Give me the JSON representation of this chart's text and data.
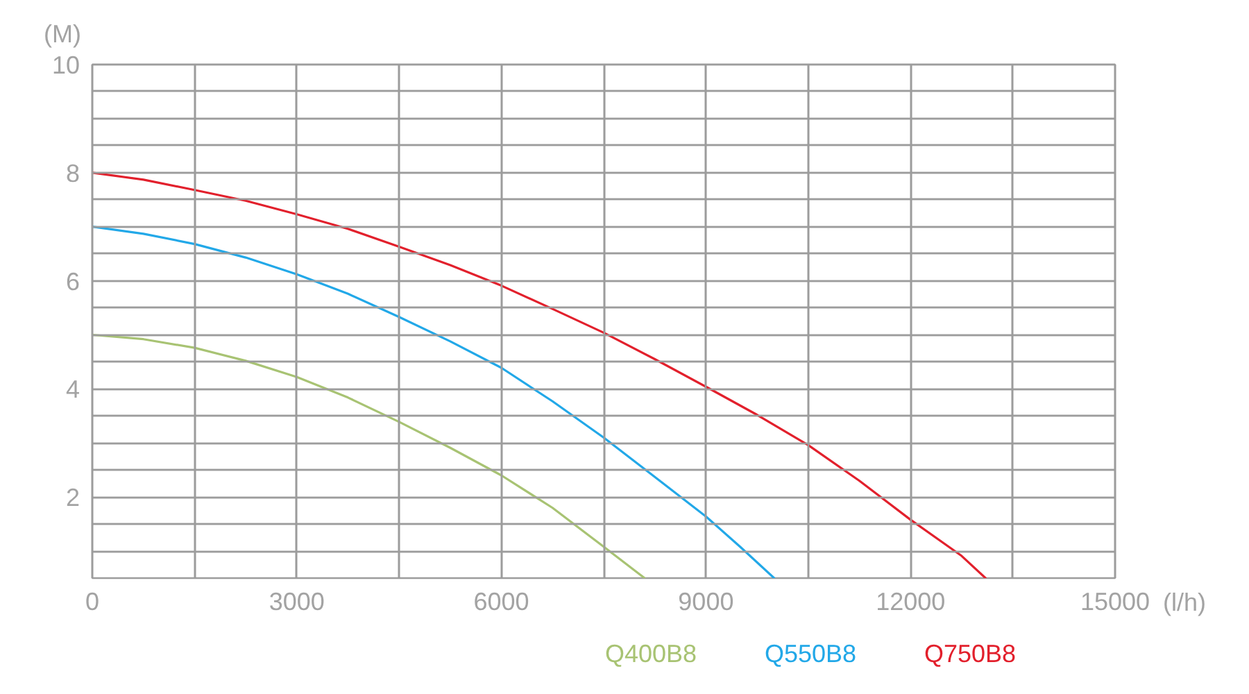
{
  "chart_data": {
    "type": "line",
    "xlabel": "(l/h)",
    "ylabel": "(M)",
    "xlim": [
      0,
      15000
    ],
    "ylim": [
      0.5,
      10
    ],
    "xticks": [
      0,
      {
        "value": 1500,
        "label": null
      },
      3000,
      {
        "value": 4500,
        "label": null
      },
      6000,
      {
        "value": 7500,
        "label": null
      },
      9000,
      {
        "value": 10500,
        "label": null
      },
      12000,
      {
        "value": 13500,
        "label": null
      },
      15000
    ],
    "yticks": [
      {
        "value": 1,
        "label": null
      },
      {
        "value": 1.5,
        "label": null
      },
      2,
      {
        "value": 2.5,
        "label": null
      },
      {
        "value": 3,
        "label": null
      },
      {
        "value": 3.5,
        "label": null
      },
      4,
      {
        "value": 4.5,
        "label": null
      },
      {
        "value": 5,
        "label": null
      },
      {
        "value": 5.5,
        "label": null
      },
      6,
      {
        "value": 6.5,
        "label": null
      },
      {
        "value": 7,
        "label": null
      },
      {
        "value": 7.5,
        "label": null
      },
      8,
      {
        "value": 8.5,
        "label": null
      },
      {
        "value": 9,
        "label": null
      },
      {
        "value": 9.5,
        "label": null
      },
      10
    ],
    "grid": true,
    "series": [
      {
        "name": "Q400B8",
        "color": "#a8c373",
        "x": [
          0,
          750,
          1500,
          2250,
          3000,
          3750,
          4500,
          5250,
          6000,
          6750,
          7500,
          8100
        ],
        "values": [
          5,
          4.92,
          4.76,
          4.52,
          4.22,
          3.84,
          3.39,
          2.91,
          2.4,
          1.8,
          1.08,
          0.5
        ]
      },
      {
        "name": "Q550B8",
        "color": "#22a8e8",
        "x": [
          0,
          750,
          1500,
          2250,
          3000,
          3750,
          4500,
          5250,
          6000,
          6750,
          7500,
          8250,
          9000,
          9500,
          10000
        ],
        "values": [
          7,
          6.87,
          6.68,
          6.43,
          6.12,
          5.76,
          5.33,
          4.88,
          4.39,
          3.77,
          3.1,
          2.37,
          1.64,
          1.08,
          0.5
        ]
      },
      {
        "name": "Q750B8",
        "color": "#e2202c",
        "x": [
          0,
          750,
          1500,
          2250,
          3000,
          3750,
          4500,
          5250,
          6000,
          6750,
          7500,
          8250,
          9000,
          9750,
          10500,
          11250,
          12000,
          12750,
          13100
        ],
        "values": [
          8,
          7.87,
          7.68,
          7.48,
          7.23,
          6.96,
          6.63,
          6.29,
          5.91,
          5.48,
          5.04,
          4.55,
          4.04,
          3.52,
          2.96,
          2.3,
          1.58,
          0.91,
          0.5
        ]
      }
    ]
  }
}
